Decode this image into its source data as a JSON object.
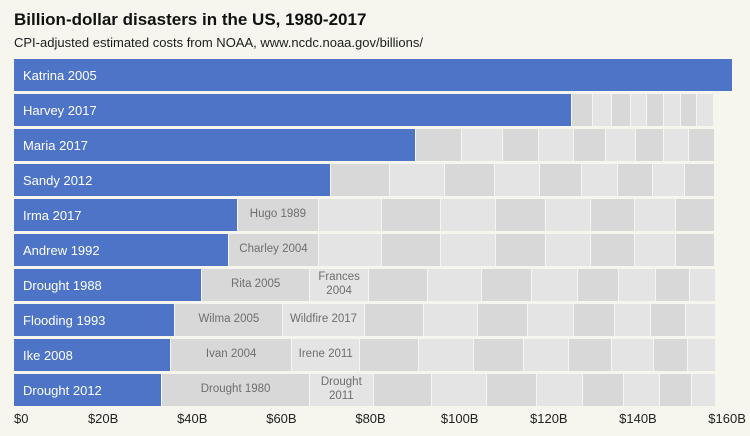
{
  "header": {
    "title": "Billion-dollar disasters in the US, 1980-2017",
    "subtitle": "CPI-adjusted estimated costs from NOAA, www.ncdc.noaa.gov/billions/"
  },
  "chart_data": {
    "type": "bar",
    "orientation": "horizontal-stacked",
    "title": "Billion-dollar disasters in the US, 1980-2017",
    "subtitle": "CPI-adjusted estimated costs from NOAA, www.ncdc.noaa.gov/billions/",
    "unit": "billions of US dollars, CPI-adjusted",
    "xlim": [
      0,
      162
    ],
    "grid": false,
    "legend": "none",
    "x_ticks": [
      {
        "value": 0,
        "label": "$0"
      },
      {
        "value": 20,
        "label": "$20B"
      },
      {
        "value": 40,
        "label": "$40B"
      },
      {
        "value": 60,
        "label": "$60B"
      },
      {
        "value": 80,
        "label": "$80B"
      },
      {
        "value": 100,
        "label": "$100B"
      },
      {
        "value": 120,
        "label": "$120B"
      },
      {
        "value": 140,
        "label": "$140B"
      },
      {
        "value": 160,
        "label": "$160B"
      }
    ],
    "colors": {
      "primary": "#4d74c6",
      "gray_shades": [
        "#d8d8d8",
        "#e4e4e4"
      ],
      "label_on_primary": "#ffffff",
      "label_on_gray": "#6e6e6e",
      "background": "#f6f6ef"
    },
    "rows": [
      {
        "segments": [
          {
            "label": "Katrina 2005",
            "type": "primary",
            "value": 161
          }
        ]
      },
      {
        "segments": [
          {
            "label": "Harvey 2017",
            "type": "primary",
            "value": 125
          },
          {
            "value": 4.5
          },
          {
            "value": 4
          },
          {
            "value": 4
          },
          {
            "value": 3.5
          },
          {
            "value": 3.5
          },
          {
            "value": 3.5
          },
          {
            "value": 3.5
          },
          {
            "value": 3.5
          }
        ]
      },
      {
        "segments": [
          {
            "label": "Maria 2017",
            "type": "primary",
            "value": 90
          },
          {
            "value": 10
          },
          {
            "value": 9
          },
          {
            "value": 8
          },
          {
            "value": 7.5
          },
          {
            "value": 7
          },
          {
            "value": 6.5
          },
          {
            "value": 6
          },
          {
            "value": 5.5
          },
          {
            "value": 5.5
          }
        ]
      },
      {
        "segments": [
          {
            "label": "Sandy 2012",
            "type": "primary",
            "value": 71
          },
          {
            "value": 13
          },
          {
            "value": 12
          },
          {
            "value": 11
          },
          {
            "value": 10
          },
          {
            "value": 9
          },
          {
            "value": 8
          },
          {
            "value": 7.5
          },
          {
            "value": 7
          },
          {
            "value": 6.5
          }
        ]
      },
      {
        "segments": [
          {
            "label": "Irma 2017",
            "type": "primary",
            "value": 50
          },
          {
            "label": "Hugo 1989",
            "value": 18
          },
          {
            "value": 14
          },
          {
            "value": 13
          },
          {
            "value": 12
          },
          {
            "value": 11
          },
          {
            "value": 10
          },
          {
            "value": 9.5
          },
          {
            "value": 9
          },
          {
            "value": 8.5
          }
        ]
      },
      {
        "segments": [
          {
            "label": "Andrew 1992",
            "type": "primary",
            "value": 48
          },
          {
            "label": "Charley 2004",
            "value": 20
          },
          {
            "value": 14
          },
          {
            "value": 13
          },
          {
            "value": 12
          },
          {
            "value": 11
          },
          {
            "value": 10
          },
          {
            "value": 9.5
          },
          {
            "value": 9
          },
          {
            "value": 8.5
          }
        ]
      },
      {
        "segments": [
          {
            "label": "Drought 1988",
            "type": "primary",
            "value": 42
          },
          {
            "label": "Rita 2005",
            "value": 24
          },
          {
            "label": "Frances 2004",
            "value": 13
          },
          {
            "value": 13
          },
          {
            "value": 12
          },
          {
            "value": 11
          },
          {
            "value": 10
          },
          {
            "value": 9
          },
          {
            "value": 8
          },
          {
            "value": 7.5
          },
          {
            "value": 5.5
          }
        ]
      },
      {
        "segments": [
          {
            "label": "Flooding 1993",
            "type": "primary",
            "value": 36
          },
          {
            "label": "Wilma 2005",
            "value": 24
          },
          {
            "label": "Wildfire 2017",
            "value": 18
          },
          {
            "value": 13
          },
          {
            "value": 12
          },
          {
            "value": 11
          },
          {
            "value": 10
          },
          {
            "value": 9
          },
          {
            "value": 8
          },
          {
            "value": 7.5
          },
          {
            "value": 6.5
          }
        ]
      },
      {
        "segments": [
          {
            "label": "Ike 2008",
            "type": "primary",
            "value": 35
          },
          {
            "label": "Ivan 2004",
            "value": 27
          },
          {
            "label": "Irene 2011",
            "value": 15
          },
          {
            "value": 13
          },
          {
            "value": 12
          },
          {
            "value": 11
          },
          {
            "value": 10
          },
          {
            "value": 9.5
          },
          {
            "value": 9
          },
          {
            "value": 7.5
          },
          {
            "value": 6
          }
        ]
      },
      {
        "segments": [
          {
            "label": "Drought 2012",
            "type": "primary",
            "value": 33
          },
          {
            "label": "Drought 1980",
            "value": 33
          },
          {
            "label": "Drought 2011",
            "value": 14
          },
          {
            "value": 13
          },
          {
            "value": 12
          },
          {
            "value": 11
          },
          {
            "value": 10
          },
          {
            "value": 9
          },
          {
            "value": 8
          },
          {
            "value": 7
          },
          {
            "value": 5
          }
        ]
      }
    ]
  }
}
